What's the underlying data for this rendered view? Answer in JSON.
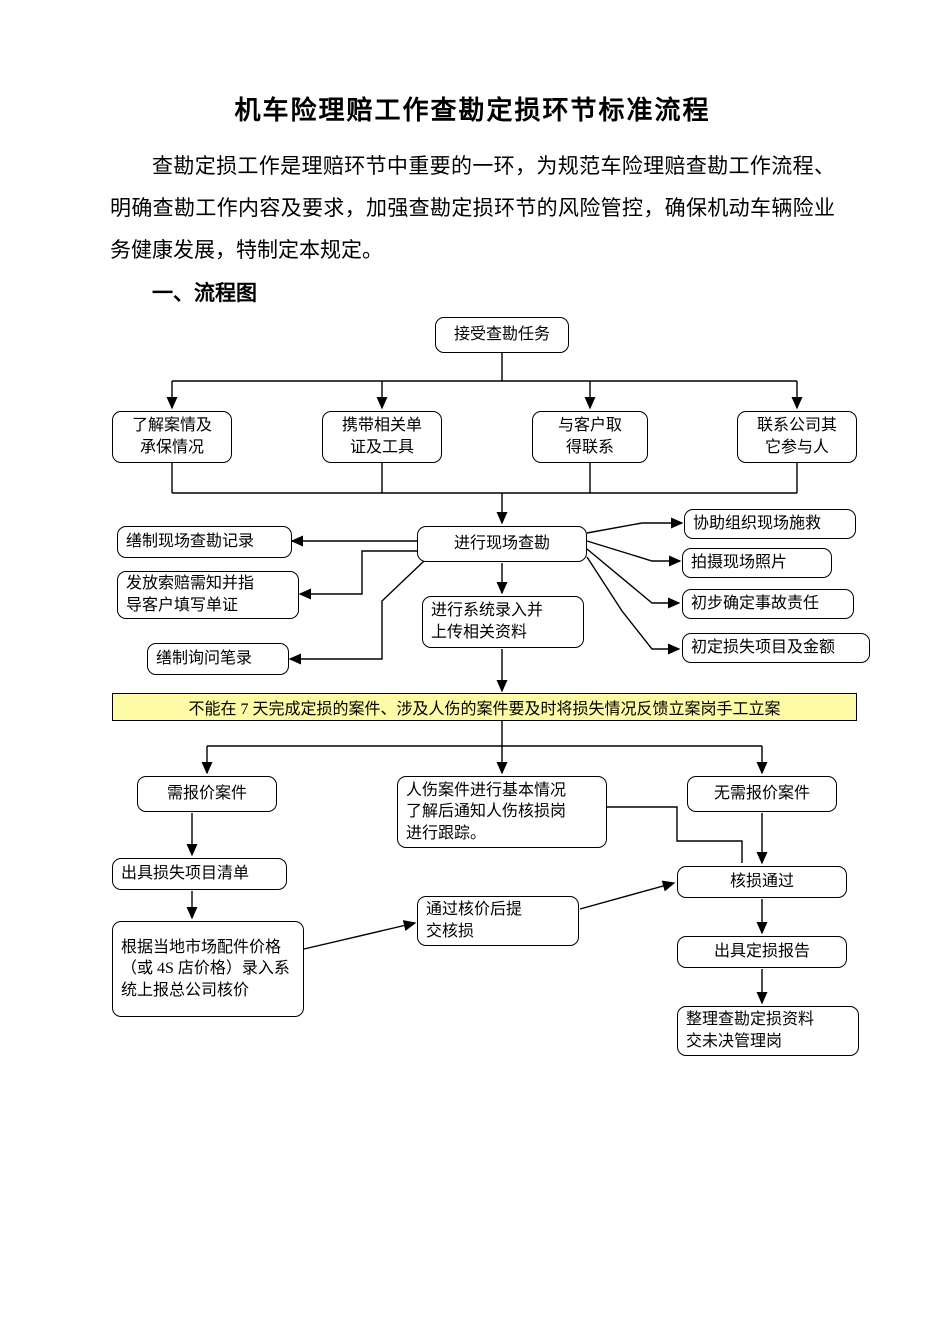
{
  "title": "机车险理赔工作查勘定损环节标准流程",
  "intro": "查勘定损工作是理赔环节中重要的一环，为规范车险理赔查勘工作流程、明确查勘工作内容及要求，加强查勘定损环节的风险管控，确保机动车辆险业务健康发展，特制定本规定。",
  "section_heading": "一、流程图",
  "banner": "不能在 7 天完成定损的案件、涉及人伤的案件要及时将损失情况反馈立案岗手工立案",
  "banner_bg": "#fdfba5",
  "stroke": "#000000",
  "nodes": {
    "n_accept": {
      "label": "接受查勘任务"
    },
    "n_case": {
      "label": "了解案情及\n承保情况"
    },
    "n_docs": {
      "label": "携带相关单\n证及工具"
    },
    "n_contact": {
      "label": "与客户取\n得联系"
    },
    "n_others": {
      "label": "联系公司其\n它参与人"
    },
    "n_site": {
      "label": "进行现场查勘"
    },
    "n_record": {
      "label": "缮制现场查勘记录"
    },
    "n_claimdoc": {
      "label": "发放索赔需知并指\n导客户填写单证"
    },
    "n_inquiry": {
      "label": "缮制询问笔录"
    },
    "n_rescue": {
      "label": "协助组织现场施救"
    },
    "n_photo": {
      "label": "拍摄现场照片"
    },
    "n_resp": {
      "label": "初步确定事故责任"
    },
    "n_lossest": {
      "label": "初定损失项目及金额"
    },
    "n_sysinput": {
      "label": "进行系统录入并\n上传相关资料"
    },
    "n_needq": {
      "label": "需报价案件"
    },
    "n_injury": {
      "label": "人伤案件进行基本情况\n了解后通知人伤核损岗\n进行跟踪。"
    },
    "n_noq": {
      "label": "无需报价案件"
    },
    "n_losslist": {
      "label": "出具损失项目清单"
    },
    "n_price": {
      "label": "根据当地市场配件价格（或 4S 店价格）录入系统上报总公司核价"
    },
    "n_submit": {
      "label": "通过核价后提\n交核损"
    },
    "n_approve": {
      "label": "核损通过"
    },
    "n_report": {
      "label": "出具定损报告"
    },
    "n_collate": {
      "label": "整理查勘定损资料\n交未决管理岗"
    }
  }
}
